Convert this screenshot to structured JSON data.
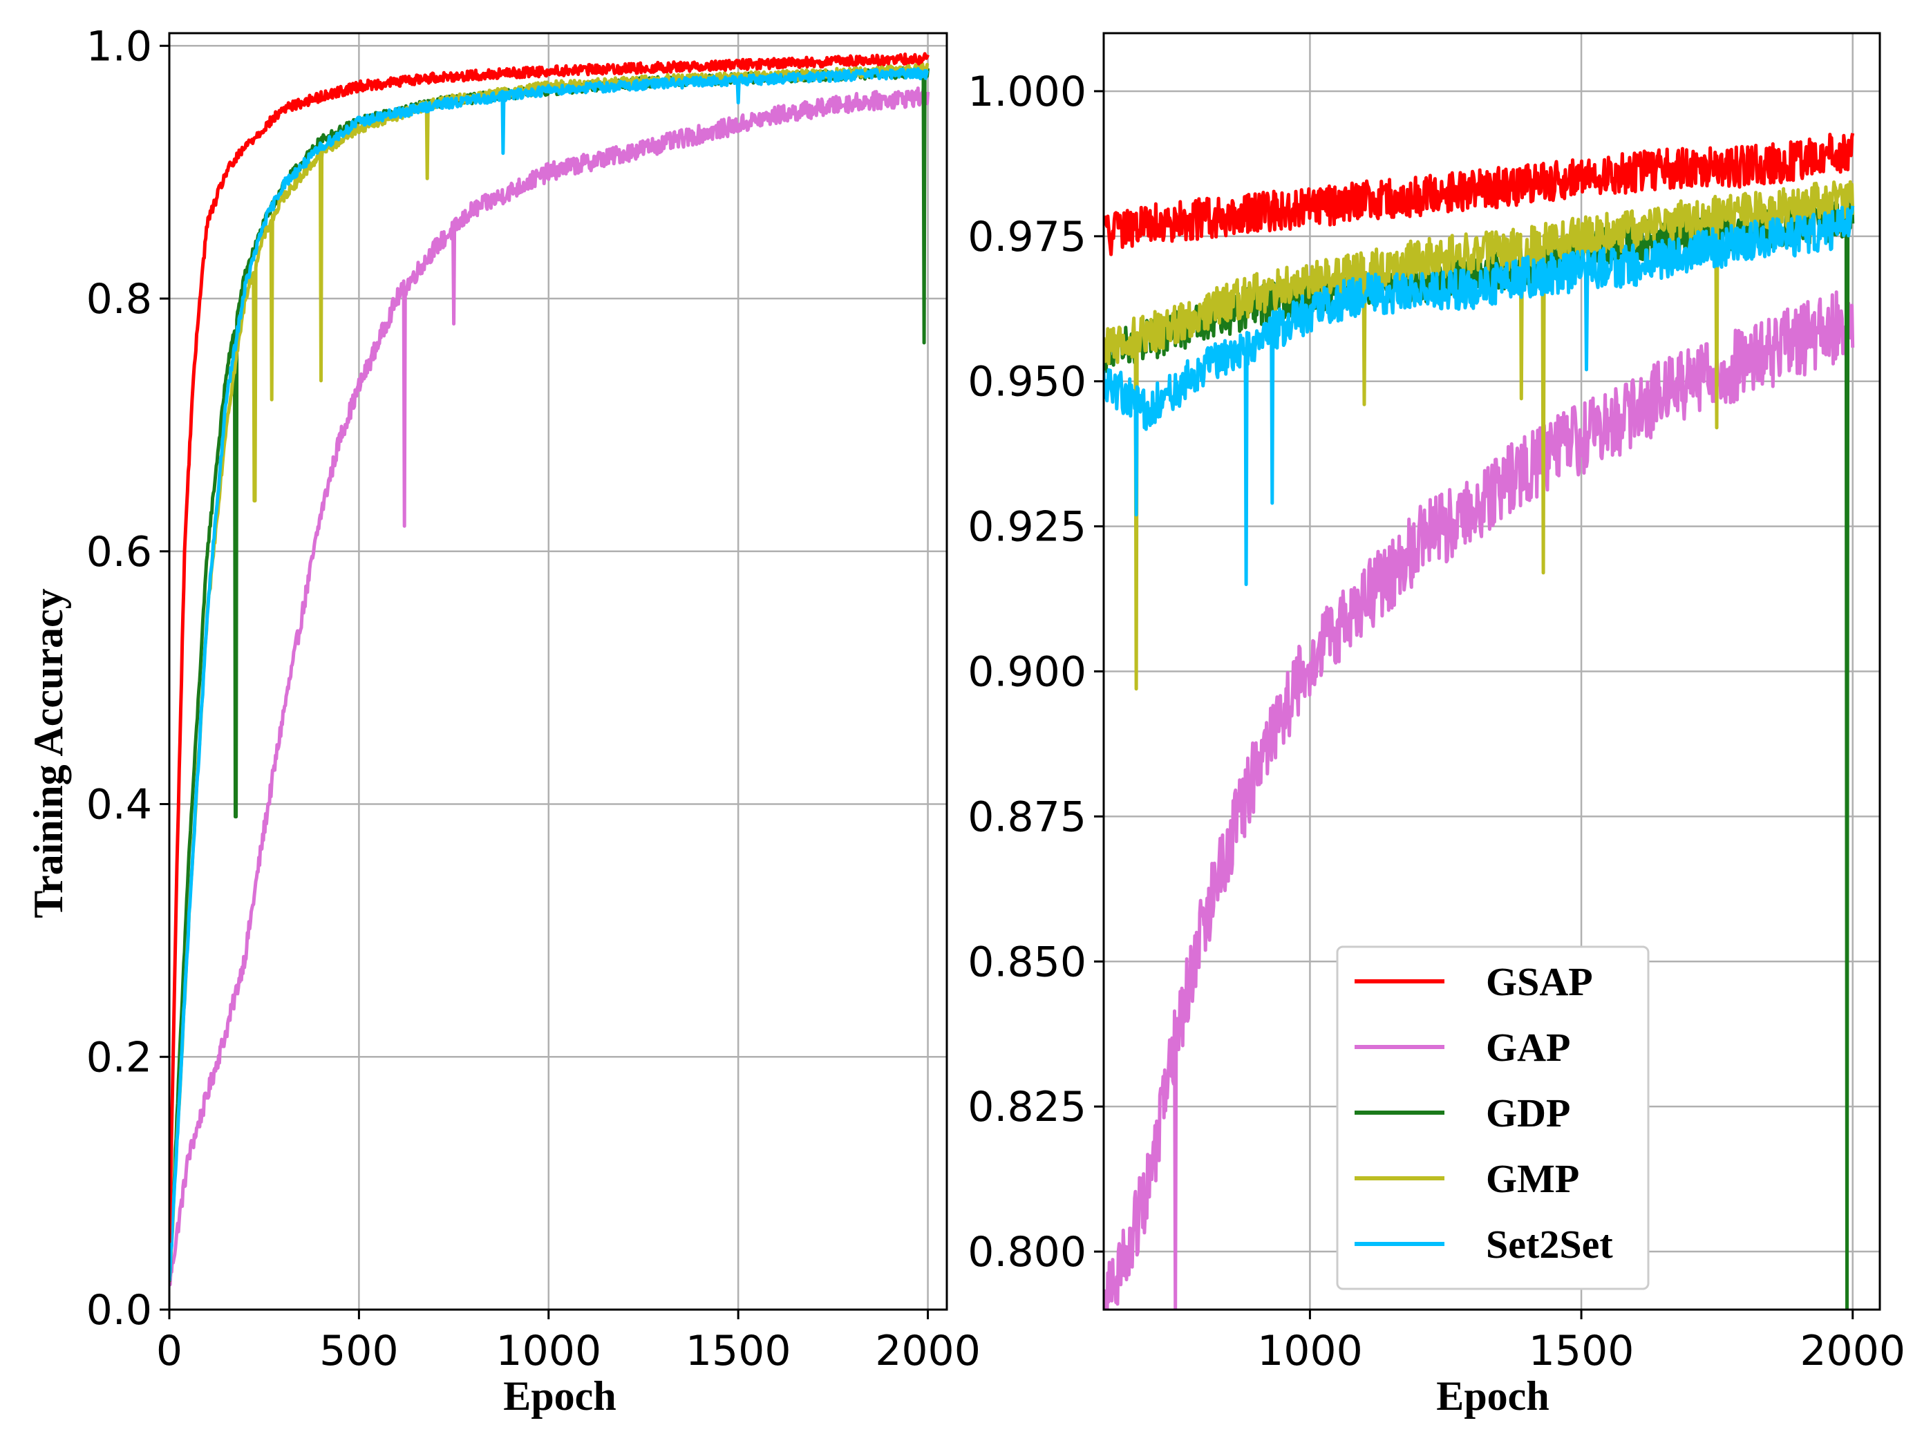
{
  "figure_title": "",
  "chart_data": [
    {
      "type": "line",
      "panel": "left",
      "title": "",
      "xlabel": "Epoch",
      "ylabel": "Training Accuracy",
      "xlim": [
        0,
        2050
      ],
      "ylim": [
        0.0,
        1.01
      ],
      "xticks": [
        0,
        500,
        1000,
        1500,
        2000
      ],
      "yticks": [
        0.0,
        0.2,
        0.4,
        0.6,
        0.8,
        1.0
      ],
      "xtick_labels": [
        "0",
        "500",
        "1000",
        "1500",
        "2000"
      ],
      "ytick_labels": [
        "0.0",
        "0.2",
        "0.4",
        "0.6",
        "0.8",
        "1.0"
      ],
      "grid": true,
      "legend": "none",
      "series": [
        {
          "name": "GSAP",
          "color": "#ff0000",
          "x": [
            0,
            20,
            40,
            60,
            80,
            100,
            150,
            200,
            300,
            400,
            500,
            700,
            1000,
            1300,
            1600,
            2000
          ],
          "y": [
            0.05,
            0.35,
            0.6,
            0.72,
            0.8,
            0.86,
            0.9,
            0.92,
            0.95,
            0.96,
            0.968,
            0.975,
            0.98,
            0.983,
            0.986,
            0.99
          ],
          "dips": []
        },
        {
          "name": "GAP",
          "color": "#da70d6",
          "x": [
            0,
            50,
            100,
            150,
            200,
            250,
            300,
            350,
            400,
            450,
            500,
            600,
            700,
            800,
            900,
            1000,
            1200,
            1400,
            1600,
            1800,
            2000
          ],
          "y": [
            0.02,
            0.12,
            0.17,
            0.22,
            0.28,
            0.38,
            0.47,
            0.55,
            0.63,
            0.69,
            0.73,
            0.8,
            0.84,
            0.87,
            0.885,
            0.9,
            0.915,
            0.93,
            0.945,
            0.955,
            0.96
          ],
          "dips": [
            [
              620,
              0.62
            ],
            [
              750,
              0.78
            ]
          ]
        },
        {
          "name": "GDP",
          "color": "#1a7a1a",
          "x": [
            0,
            50,
            100,
            150,
            200,
            250,
            300,
            400,
            500,
            700,
            1000,
            1300,
            1600,
            1900,
            2000
          ],
          "y": [
            0.02,
            0.35,
            0.6,
            0.74,
            0.82,
            0.86,
            0.89,
            0.925,
            0.94,
            0.955,
            0.965,
            0.972,
            0.975,
            0.978,
            0.98
          ],
          "dips": [
            [
              175,
              0.39
            ],
            [
              1990,
              0.765
            ]
          ]
        },
        {
          "name": "GMP",
          "color": "#bcbd22",
          "x": [
            0,
            50,
            100,
            150,
            200,
            250,
            300,
            400,
            500,
            700,
            1000,
            1300,
            1600,
            1900,
            2000
          ],
          "y": [
            0.02,
            0.3,
            0.55,
            0.7,
            0.8,
            0.85,
            0.88,
            0.915,
            0.935,
            0.955,
            0.968,
            0.973,
            0.976,
            0.98,
            0.982
          ],
          "dips": [
            [
              225,
              0.64
            ],
            [
              270,
              0.72
            ],
            [
              400,
              0.735
            ],
            [
              680,
              0.895
            ]
          ]
        },
        {
          "name": "Set2Set",
          "color": "#00bfff",
          "x": [
            0,
            50,
            100,
            150,
            200,
            250,
            300,
            400,
            500,
            700,
            1000,
            1300,
            1600,
            1900,
            2000
          ],
          "y": [
            0.02,
            0.3,
            0.55,
            0.72,
            0.81,
            0.86,
            0.89,
            0.92,
            0.94,
            0.953,
            0.965,
            0.97,
            0.974,
            0.978,
            0.978
          ],
          "dips": [
            [
              880,
              0.915
            ],
            [
              1500,
              0.955
            ]
          ]
        }
      ]
    },
    {
      "type": "line",
      "panel": "right",
      "title": "",
      "xlabel": "Epoch",
      "ylabel": "",
      "xlim": [
        620,
        2050
      ],
      "ylim": [
        0.79,
        1.01
      ],
      "xticks": [
        1000,
        1500,
        2000
      ],
      "yticks": [
        0.8,
        0.825,
        0.85,
        0.875,
        0.9,
        0.925,
        0.95,
        0.975,
        1.0
      ],
      "xtick_labels": [
        "1000",
        "1500",
        "2000"
      ],
      "ytick_labels": [
        "0.800",
        "0.825",
        "0.850",
        "0.875",
        "0.900",
        "0.925",
        "0.950",
        "0.975",
        "1.000"
      ],
      "grid": true,
      "legend": "lower-right",
      "series": [
        {
          "name": "GSAP",
          "color": "#ff0000",
          "x": [
            620,
            700,
            800,
            900,
            1000,
            1100,
            1200,
            1300,
            1400,
            1500,
            1600,
            1700,
            1800,
            1900,
            2000
          ],
          "y": [
            0.975,
            0.977,
            0.978,
            0.979,
            0.98,
            0.981,
            0.982,
            0.983,
            0.984,
            0.985,
            0.986,
            0.987,
            0.987,
            0.988,
            0.99
          ],
          "dips": []
        },
        {
          "name": "GAP",
          "color": "#da70d6",
          "x": [
            620,
            660,
            700,
            750,
            800,
            850,
            900,
            950,
            1000,
            1050,
            1100,
            1200,
            1300,
            1400,
            1500,
            1600,
            1700,
            1800,
            1900,
            2000
          ],
          "y": [
            0.79,
            0.8,
            0.81,
            0.835,
            0.855,
            0.87,
            0.883,
            0.893,
            0.902,
            0.907,
            0.912,
            0.922,
            0.928,
            0.935,
            0.94,
            0.945,
            0.95,
            0.953,
            0.957,
            0.96
          ],
          "dips": [
            [
              752,
              0.79
            ]
          ]
        },
        {
          "name": "GDP",
          "color": "#1a7a1a",
          "x": [
            620,
            700,
            800,
            900,
            1000,
            1100,
            1200,
            1300,
            1400,
            1500,
            1600,
            1700,
            1800,
            1900,
            1985,
            2000
          ],
          "y": [
            0.955,
            0.957,
            0.96,
            0.963,
            0.965,
            0.966,
            0.967,
            0.968,
            0.97,
            0.972,
            0.974,
            0.975,
            0.976,
            0.977,
            0.978,
            0.98
          ],
          "dips": [
            [
              1990,
              0.79
            ]
          ]
        },
        {
          "name": "GMP",
          "color": "#bcbd22",
          "x": [
            620,
            700,
            800,
            900,
            1000,
            1100,
            1200,
            1300,
            1400,
            1500,
            1600,
            1700,
            1800,
            1900,
            2000
          ],
          "y": [
            0.956,
            0.958,
            0.962,
            0.965,
            0.967,
            0.969,
            0.971,
            0.972,
            0.973,
            0.975,
            0.976,
            0.978,
            0.979,
            0.98,
            0.982
          ],
          "dips": [
            [
              680,
              0.897
            ],
            [
              1100,
              0.946
            ],
            [
              1390,
              0.947
            ],
            [
              1430,
              0.917
            ],
            [
              1750,
              0.942
            ]
          ]
        },
        {
          "name": "Set2Set",
          "color": "#00bfff",
          "x": [
            620,
            700,
            800,
            900,
            1000,
            1100,
            1200,
            1300,
            1400,
            1500,
            1600,
            1700,
            1800,
            1900,
            2000
          ],
          "y": [
            0.95,
            0.945,
            0.952,
            0.957,
            0.962,
            0.965,
            0.965,
            0.966,
            0.968,
            0.969,
            0.97,
            0.972,
            0.974,
            0.975,
            0.977
          ],
          "dips": [
            [
              680,
              0.927
            ],
            [
              883,
              0.915
            ],
            [
              930,
              0.929
            ],
            [
              1510,
              0.952
            ]
          ]
        }
      ]
    }
  ]
}
